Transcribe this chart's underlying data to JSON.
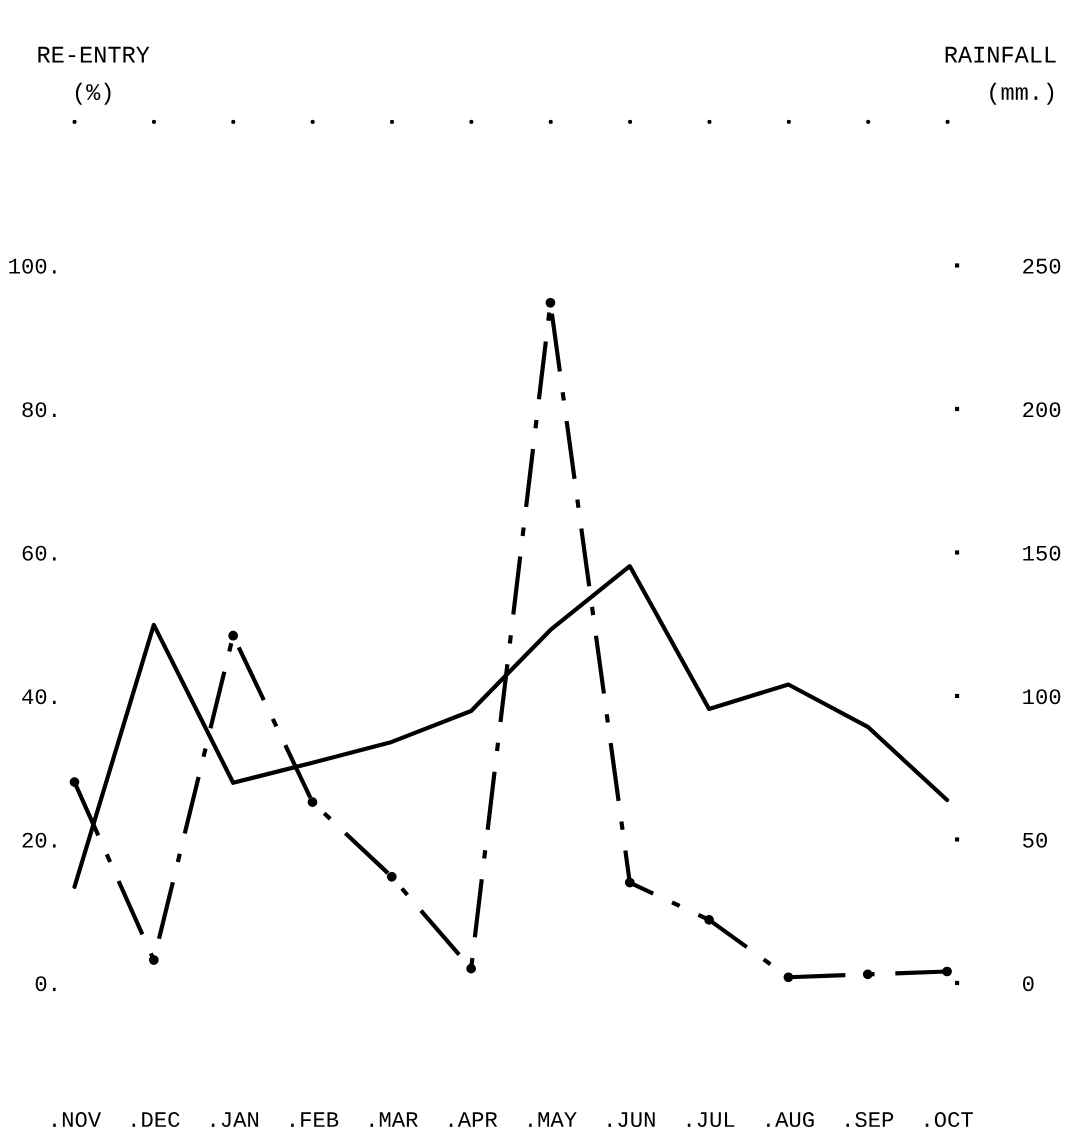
{
  "chart_data": {
    "type": "line",
    "categories": [
      ".NOV",
      ".DEC",
      ".JAN",
      ".FEB",
      ".MAR",
      ".APR",
      ".MAY",
      ".JUN",
      ".JUL",
      ".AUG",
      ".SEP",
      ".OCT"
    ],
    "ylabel": "RE-ENTRY\n(%)",
    "y2label": "RAINFALL\n(mm.)",
    "series": [
      {
        "color": "#000000",
        "line_style": "solid",
        "marker": "none",
        "values": [
          13.4,
          49.9,
          27.9,
          30.7,
          33.6,
          37.9,
          49.2,
          58.1,
          38.2,
          41.6,
          35.7,
          25.5
        ]
      },
      {
        "color": "#000000",
        "line_style": "dashed",
        "marker": "circle",
        "axis": "y2",
        "values": [
          70,
          8,
          121,
          63,
          37,
          5,
          237,
          35,
          22,
          2,
          3,
          4
        ]
      }
    ],
    "ylim": [
      0,
      120
    ],
    "yticks": [
      {
        "value": 0,
        "label": "0."
      },
      {
        "value": 20,
        "label": "20."
      },
      {
        "value": 40,
        "label": "40."
      },
      {
        "value": 60,
        "label": "60."
      },
      {
        "value": 80,
        "label": "80."
      },
      {
        "value": 100,
        "label": "100."
      }
    ],
    "y2lim": [
      0,
      300
    ],
    "y2ticks": [
      0,
      50,
      100,
      150,
      200,
      250
    ],
    "grid": false,
    "legend": false
  }
}
